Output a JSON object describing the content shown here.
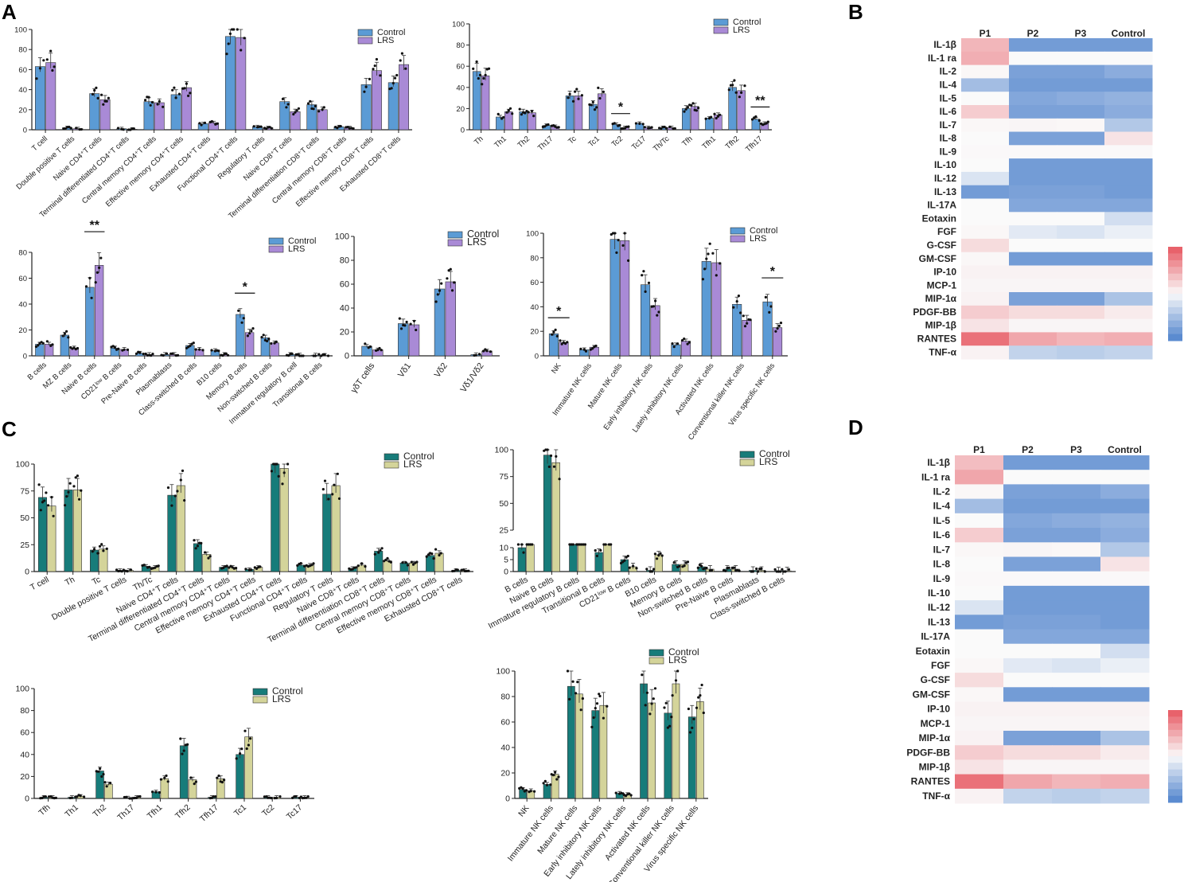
{
  "colors": {
    "control_A": "#5b9bd5",
    "lrs_A": "#a98ad6",
    "control_C": "#177c7a",
    "lrs_C": "#d4d49a",
    "axis": "#222222",
    "dot": "#111111",
    "heat_blue": "#5b8bd0",
    "heat_red": "#e8626b"
  },
  "panel_labels": {
    "A": "A",
    "B": "B",
    "C": "C",
    "D": "D"
  },
  "chart_data": [
    {
      "panel": "A",
      "type": "bar",
      "title": "",
      "xlabel": "",
      "ylabel": "",
      "ylim": [
        0,
        100
      ],
      "yticks": [
        0,
        20,
        40,
        60,
        80,
        100
      ],
      "legend": [
        "Control",
        "LRS"
      ],
      "legend_position": "top-right",
      "categories": [
        "T cell",
        "Double positive T cells",
        "Naive CD4⁺T cells",
        "Terminal differentiated CD4⁺T cells",
        "Central memory CD4⁺T cells",
        "Effective memory CD4⁺T cells",
        "Exhausted CD4⁺T cells",
        "Functional CD4⁺T cells",
        "Regulatory T cells",
        "Naive CD8⁺T cells",
        "Terminal differentiation CD8⁺T cells",
        "Central memory CD8⁺T cells",
        "Effective memory CD8⁺T cells",
        "Exhausted CD8⁺T cells"
      ],
      "series": [
        {
          "name": "Control",
          "values": [
            63,
            2,
            36,
            1,
            28,
            35,
            6,
            93,
            3,
            28,
            25,
            3,
            45,
            47
          ]
        },
        {
          "name": "LRS",
          "values": [
            67,
            1,
            30,
            0.5,
            27,
            42,
            7,
            92,
            2,
            18,
            20,
            2,
            59,
            65
          ]
        }
      ],
      "significance": []
    },
    {
      "panel": "A",
      "type": "bar",
      "title": "",
      "xlabel": "",
      "ylabel": "",
      "ylim": [
        0,
        100
      ],
      "yticks": [
        0,
        20,
        40,
        60,
        80,
        100
      ],
      "legend": [
        "Control",
        "LRS"
      ],
      "legend_position": "top-right",
      "categories": [
        "Th",
        "Th1",
        "Th2",
        "Th17",
        "Tc",
        "Tc1",
        "Tc2",
        "Tc17",
        "Th/Tc",
        "Tfh",
        "Tfh1",
        "Tfh2",
        "Tfh17"
      ],
      "series": [
        {
          "name": "Control",
          "values": [
            55,
            12,
            17,
            4,
            32,
            24,
            5,
            6,
            2,
            20,
            11,
            40,
            10
          ]
        },
        {
          "name": "LRS",
          "values": [
            51,
            17,
            16,
            3,
            32,
            34,
            2,
            2,
            2,
            22,
            14,
            37,
            6
          ]
        }
      ],
      "significance": [
        {
          "category": "Tc2",
          "label": "*"
        },
        {
          "category": "Tfh17",
          "label": "**"
        }
      ]
    },
    {
      "panel": "A",
      "type": "bar",
      "title": "",
      "xlabel": "",
      "ylabel": "",
      "ylim": [
        0,
        80
      ],
      "yticks": [
        0,
        20,
        40,
        60,
        80
      ],
      "legend": [
        "Control",
        "LRS"
      ],
      "legend_position": "top-right",
      "categories": [
        "B cells",
        "MZ B cells",
        "Naive B cells",
        "CD21ˡᵒʷ B cells",
        "Pre-Naive B cells",
        "Plasmablasts",
        "Class-switched B cells",
        "B10 cells",
        "Memory B cells",
        "Non-switched B cells",
        "Immature regulatory B cell",
        "Transitional B cells"
      ],
      "series": [
        {
          "name": "Control",
          "values": [
            9,
            16,
            53,
            6,
            2,
            1,
            8,
            4,
            32,
            14,
            1,
            0.5
          ]
        },
        {
          "name": "LRS",
          "values": [
            9,
            6,
            70,
            5,
            1,
            1,
            5,
            1,
            18,
            10,
            0.5,
            0.3
          ]
        }
      ],
      "significance": [
        {
          "category": "Naive B cells",
          "label": "**"
        },
        {
          "category": "Memory B cells",
          "label": "*"
        }
      ]
    },
    {
      "panel": "A",
      "type": "bar",
      "title": "",
      "xlabel": "",
      "ylabel": "",
      "ylim": [
        0,
        100
      ],
      "yticks": [
        0,
        20,
        40,
        60,
        80,
        100
      ],
      "legend": [
        "Control",
        "LRS"
      ],
      "legend_position": "top-right",
      "categories": [
        "γδT cells",
        "Vδ1",
        "Vδ2",
        "Vδ1/Vδ2"
      ],
      "series": [
        {
          "name": "Control",
          "values": [
            8,
            27,
            56,
            1
          ]
        },
        {
          "name": "LRS",
          "values": [
            5,
            26,
            62,
            4
          ]
        }
      ],
      "significance": []
    },
    {
      "panel": "A",
      "type": "bar",
      "title": "",
      "xlabel": "",
      "ylabel": "",
      "ylim": [
        0,
        100
      ],
      "yticks": [
        0,
        20,
        40,
        60,
        80,
        100
      ],
      "legend": [
        "Control",
        "LRS"
      ],
      "legend_position": "top-right",
      "categories": [
        "NK",
        "Immature NK cells",
        "Mature NK cells",
        "Early inhibitory NK cells",
        "Lately inhibitory NK cells",
        "Activated NK cells",
        "Conventional killer NK cells",
        "Virus specific NK cells"
      ],
      "series": [
        {
          "name": "Control",
          "values": [
            18,
            5,
            95,
            58,
            9,
            77,
            42,
            44
          ]
        },
        {
          "name": "LRS",
          "values": [
            11,
            7,
            94,
            41,
            12,
            76,
            29,
            23
          ]
        }
      ],
      "significance": [
        {
          "category": "NK",
          "label": "*"
        },
        {
          "category": "Virus specific NK cells",
          "label": "*"
        }
      ]
    },
    {
      "panel": "C",
      "type": "bar",
      "title": "",
      "xlabel": "",
      "ylabel": "",
      "ylim": [
        0,
        100
      ],
      "yticks": [
        0,
        25,
        50,
        75,
        100
      ],
      "legend": [
        "Control",
        "LRS"
      ],
      "legend_position": "top-right",
      "categories": [
        "T cell",
        "Th",
        "Tc",
        "Double positive T cells",
        "Th/Tc",
        "Naive CD4⁺T cells",
        "Terminal differentiated CD4⁺T cells",
        "Central memory CD4⁺T cells",
        "Effective memory CD4⁺T cells",
        "Exhausted CD4⁺T cells",
        "Functional CD4⁺T cells",
        "Regulatory T cells",
        "Naive CD8⁺T cells",
        "Terminal differentiation CD8⁺T cells",
        "Central memory CD8⁺T cells",
        "Effective memory CD8⁺T cells",
        "Exhausted CD8⁺T cells"
      ],
      "series": [
        {
          "name": "Control",
          "values": [
            69,
            76,
            20,
            1,
            5,
            71,
            26,
            4,
            2,
            100,
            6,
            72,
            3,
            19,
            8,
            15,
            1
          ]
        },
        {
          "name": "LRS",
          "values": [
            61,
            76,
            21,
            1,
            4,
            80,
            16,
            4,
            4,
            96,
            6,
            80,
            6,
            10,
            8,
            17,
            1
          ]
        }
      ],
      "significance": []
    },
    {
      "panel": "C",
      "type": "bar",
      "title": "",
      "xlabel": "",
      "ylabel": "",
      "ylim": [
        0,
        100
      ],
      "yticks": [
        0,
        5,
        10,
        25,
        50,
        75,
        100
      ],
      "axis_break": [
        10,
        25
      ],
      "legend": [
        "Control",
        "LRS"
      ],
      "legend_position": "top-right",
      "categories": [
        "B cells",
        "Naive B cells",
        "Immature regulatory B cells",
        "Transitional B cells",
        "CD21ˡᵒʷ B cells",
        "B10 cells",
        "Memory B cells",
        "Non-switched B cells",
        "Pre-Naive B cells",
        "Plasmablasts",
        "Class-switched B cells"
      ],
      "series": [
        {
          "name": "Control",
          "values": [
            10,
            95,
            12,
            8,
            5,
            0.5,
            3,
            2,
            1,
            0.5,
            0.3
          ]
        },
        {
          "name": "LRS",
          "values": [
            16,
            88,
            21,
            19,
            2,
            7,
            3,
            1,
            1,
            0.5,
            0.3
          ]
        }
      ],
      "significance": []
    },
    {
      "panel": "C",
      "type": "bar",
      "title": "",
      "xlabel": "",
      "ylabel": "",
      "ylim": [
        0,
        100
      ],
      "yticks": [
        0,
        20,
        40,
        60,
        80,
        100
      ],
      "legend": [
        "Control",
        "LRS"
      ],
      "legend_position": "top-right",
      "categories": [
        "Tfh",
        "Th1",
        "Th2",
        "Th17",
        "Tfh1",
        "Tfh2",
        "Tfh17",
        "Tc1",
        "Tc2",
        "Tc17"
      ],
      "series": [
        {
          "name": "Control",
          "values": [
            1,
            1,
            25,
            0.5,
            6,
            48,
            1,
            40,
            1,
            1
          ]
        },
        {
          "name": "LRS",
          "values": [
            1,
            2,
            13,
            1,
            18,
            17,
            18,
            56,
            1,
            1
          ]
        }
      ],
      "significance": []
    },
    {
      "panel": "C",
      "type": "bar",
      "title": "",
      "xlabel": "",
      "ylabel": "",
      "ylim": [
        0,
        100
      ],
      "yticks": [
        0,
        20,
        40,
        60,
        80,
        100
      ],
      "legend": [
        "Control",
        "LRS"
      ],
      "legend_position": "top-right",
      "categories": [
        "NK",
        "Immature NK cells",
        "Mature NK cells",
        "Early inhibitory NK cells",
        "Lately inhibitory NK cells",
        "Activated NK cells",
        "Conventional killer NK cells",
        "Virus specific NK cells"
      ],
      "series": [
        {
          "name": "Control",
          "values": [
            7,
            11,
            88,
            69,
            4,
            90,
            67,
            64
          ]
        },
        {
          "name": "LRS",
          "values": [
            6,
            19,
            82,
            73,
            3,
            75,
            90,
            76
          ]
        }
      ],
      "significance": []
    },
    {
      "panel": "B",
      "type": "heatmap",
      "columns": [
        "P1",
        "P2",
        "P3",
        "Control"
      ],
      "rows": [
        "IL-1β",
        "IL-1 ra",
        "IL-2",
        "IL-4",
        "IL-5",
        "IL-6",
        "IL-7",
        "IL-8",
        "IL-9",
        "IL-10",
        "IL-12",
        "IL-13",
        "IL-17A",
        "Eotaxin",
        "FGF",
        "G-CSF",
        "GM-CSF",
        "IP-10",
        "MCP-1",
        "MIP-1α",
        "PDGF-BB",
        "MIP-1β",
        "RANTES",
        "TNF-α"
      ],
      "values": [
        [
          0.45,
          -0.85,
          -0.85,
          -0.85
        ],
        [
          0.5,
          0,
          0,
          0
        ],
        [
          0.02,
          -0.8,
          -0.8,
          -0.7
        ],
        [
          -0.55,
          -0.85,
          -0.85,
          -0.85
        ],
        [
          0,
          -0.75,
          -0.7,
          -0.65
        ],
        [
          0.3,
          -0.8,
          -0.8,
          -0.7
        ],
        [
          0.02,
          0.03,
          0.02,
          -0.45
        ],
        [
          0,
          -0.8,
          -0.8,
          0.15
        ],
        [
          0.01,
          0.01,
          0.01,
          0.01
        ],
        [
          0,
          -0.85,
          -0.85,
          -0.85
        ],
        [
          -0.2,
          -0.85,
          -0.85,
          -0.85
        ],
        [
          -0.85,
          -0.8,
          -0.8,
          -0.85
        ],
        [
          0,
          -0.75,
          -0.75,
          -0.75
        ],
        [
          0,
          0,
          0,
          -0.25
        ],
        [
          0.02,
          -0.15,
          -0.2,
          -0.1
        ],
        [
          0.2,
          0,
          0,
          0
        ],
        [
          0.02,
          -0.85,
          -0.85,
          -0.85
        ],
        [
          0.05,
          0.05,
          0.05,
          0.05
        ],
        [
          0.03,
          0.03,
          0.03,
          0.03
        ],
        [
          0.05,
          -0.8,
          -0.8,
          -0.5
        ],
        [
          0.3,
          0.2,
          0.2,
          0.1
        ],
        [
          0.15,
          0.03,
          0.03,
          0.03
        ],
        [
          0.9,
          0.55,
          0.45,
          0.5
        ],
        [
          0.05,
          -0.35,
          -0.4,
          -0.35
        ]
      ]
    },
    {
      "panel": "D",
      "type": "heatmap",
      "columns": [
        "P1",
        "P2",
        "P3",
        "Control"
      ],
      "rows": [
        "IL-1β",
        "IL-1 ra",
        "IL-2",
        "IL-4",
        "IL-5",
        "IL-6",
        "IL-7",
        "IL-8",
        "IL-9",
        "IL-10",
        "IL-12",
        "IL-13",
        "IL-17A",
        "Eotaxin",
        "FGF",
        "G-CSF",
        "GM-CSF",
        "IP-10",
        "MCP-1",
        "MIP-1α",
        "PDGF-BB",
        "MIP-1β",
        "RANTES",
        "TNF-α"
      ],
      "values": [
        [
          0.4,
          -0.85,
          -0.85,
          -0.85
        ],
        [
          0.55,
          0,
          0,
          0
        ],
        [
          0.02,
          -0.8,
          -0.8,
          -0.7
        ],
        [
          -0.55,
          -0.85,
          -0.85,
          -0.85
        ],
        [
          0,
          -0.75,
          -0.7,
          -0.65
        ],
        [
          0.3,
          -0.8,
          -0.8,
          -0.7
        ],
        [
          0.02,
          0.03,
          0.02,
          -0.45
        ],
        [
          0,
          -0.8,
          -0.8,
          0.15
        ],
        [
          0.01,
          0.01,
          0.01,
          0.01
        ],
        [
          0,
          -0.85,
          -0.85,
          -0.85
        ],
        [
          -0.2,
          -0.85,
          -0.85,
          -0.85
        ],
        [
          -0.85,
          -0.8,
          -0.8,
          -0.85
        ],
        [
          0,
          -0.75,
          -0.75,
          -0.75
        ],
        [
          0,
          0,
          0,
          -0.25
        ],
        [
          0.02,
          -0.15,
          -0.2,
          -0.1
        ],
        [
          0.2,
          0,
          0,
          0
        ],
        [
          0.02,
          -0.85,
          -0.85,
          -0.85
        ],
        [
          0.05,
          0.05,
          0.05,
          0.05
        ],
        [
          0.03,
          0.03,
          0.03,
          0.03
        ],
        [
          0.05,
          -0.8,
          -0.8,
          -0.5
        ],
        [
          0.3,
          0.2,
          0.2,
          0.1
        ],
        [
          0.15,
          0.03,
          0.03,
          0.03
        ],
        [
          0.9,
          0.55,
          0.45,
          0.5
        ],
        [
          0.05,
          -0.35,
          -0.4,
          -0.35
        ]
      ]
    }
  ]
}
